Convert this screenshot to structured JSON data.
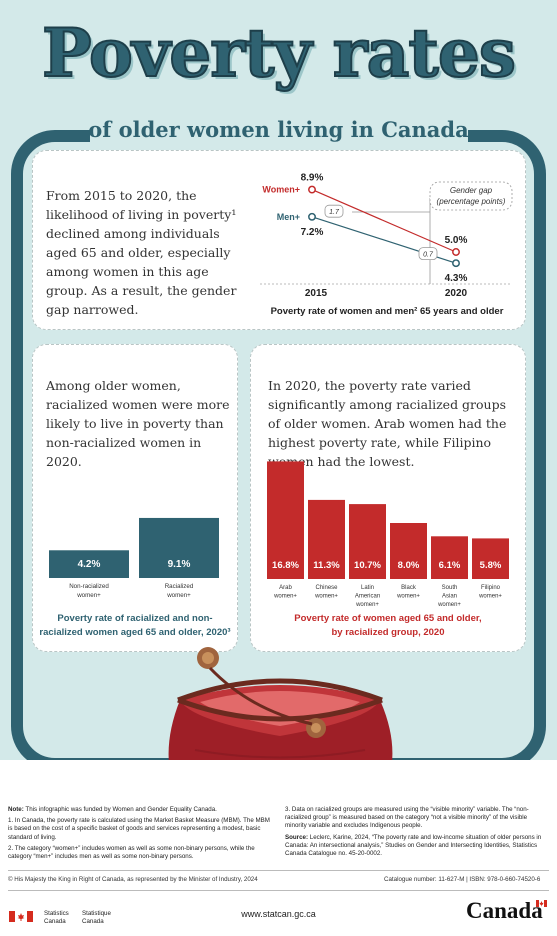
{
  "header": {
    "title": "Poverty rates",
    "subtitle": "of older women living in Canada"
  },
  "panel1": {
    "text": "From 2015 to 2020, the likelihood of living in poverty¹ declined among individuals aged 65 and older, especially among women in this age group. As a result, the gender gap narrowed.",
    "gap_label_line1": "Gender gap",
    "gap_label_line2": "(percentage points)",
    "chart_title": "Poverty rate of women and men² 65 years and older"
  },
  "panel2": {
    "text": "Among older women, racialized women were more likely to live in poverty than non-racialized women in 2020.",
    "chart_title": "Poverty rate of racialized and non-racialized women aged 65 and older, 2020³"
  },
  "panel3": {
    "text": "In 2020, the poverty rate varied significantly among racialized groups of older women. Arab women had the highest poverty rate, while Filipino women had the lowest.",
    "chart_title": "Poverty rate of women aged 65 and older, by racialized group, 2020"
  },
  "chart_data": [
    {
      "type": "line",
      "title": "Poverty rate of women and men² 65 years and older",
      "x": [
        "2015",
        "2020"
      ],
      "series": [
        {
          "name": "Women+",
          "values": [
            8.9,
            5.0
          ],
          "labels": [
            "8.9%",
            "5.0%"
          ],
          "color": "#c32b2b"
        },
        {
          "name": "Men+",
          "values": [
            7.2,
            4.3
          ],
          "labels": [
            "7.2%",
            "4.3%"
          ],
          "color": "#2f6271"
        }
      ],
      "gender_gap": {
        "values": [
          1.7,
          0.7
        ],
        "labels": [
          "1.7",
          "0.7"
        ]
      },
      "ylim": [
        3,
        10
      ],
      "grid": false
    },
    {
      "type": "bar",
      "title": "Poverty rate of racialized and non-racialized women aged 65 and older, 2020³",
      "categories": [
        "Non-racialized women+",
        "Racialized women+"
      ],
      "values": [
        4.2,
        9.1
      ],
      "labels": [
        "4.2%",
        "9.1%"
      ],
      "ylim": [
        0,
        10
      ],
      "color": "#2f6271"
    },
    {
      "type": "bar",
      "title": "Poverty rate of women aged 65 and older, by racialized group, 2020",
      "categories": [
        "Arab women+",
        "Chinese women+",
        "Latin American women+",
        "Black women+",
        "South Asian women+",
        "Filipino women+"
      ],
      "values": [
        16.8,
        11.3,
        10.7,
        8.0,
        6.1,
        5.8
      ],
      "labels": [
        "16.8%",
        "11.3%",
        "10.7%",
        "8.0%",
        "6.1%",
        "5.8%"
      ],
      "ylim": [
        0,
        17
      ],
      "color": "#c32b2b"
    }
  ],
  "colors": {
    "teal": "#2f6271",
    "red": "#c32b2b",
    "background": "#d3e9e9"
  },
  "notes": {
    "note_label": "Note:",
    "note_text": "This infographic was funded by Women and Gender Equality Canada.",
    "n1": "1.  In Canada, the poverty rate is calculated using the Market Basket Measure (MBM). The MBM is based on the cost of a specific basket of goods and services representing a modest, basic standard of living.",
    "n2": "2.  The category “women+” includes women as well as some non-binary persons, while the category “men+” includes men as well as some non-binary persons.",
    "n3": "3.  Data on racialized groups are measured using the “visible minority” variable. The “non-racialized group” is measured based on the category “not a visible minority” of the visible minority variable and excludes Indigenous people.",
    "source_label": "Source:",
    "source_text": "Leclerc, Karine, 2024, “The poverty rate and low-income situation of older persons in Canada: An intersectional analysis,” Studies on Gender and Intersecting Identities, Statistics Canada Catalogue no. 45-20-0002."
  },
  "footer": {
    "copyright": "© His Majesty the King in Right of Canada, as represented by the Minister of Industry, 2024",
    "catalogue": "Catalogue number: 11-627-M | ISBN: 978-0-660-74520-6",
    "url": "www.statcan.gc.ca",
    "sc_en_line1": "Statistics",
    "sc_en_line2": "Canada",
    "sc_fr_line1": "Statistique",
    "sc_fr_line2": "Canada",
    "wordmark": "Canada"
  }
}
